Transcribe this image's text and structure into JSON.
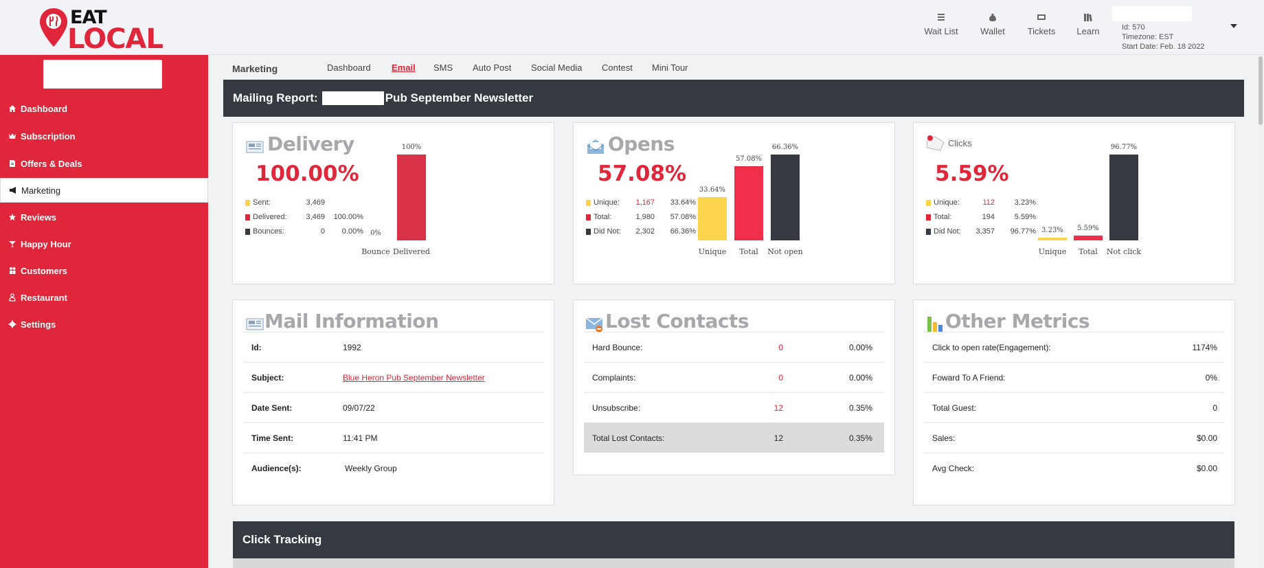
{
  "header": {
    "logo_top": "EAT",
    "logo_bottom": "LOCAL",
    "nav": [
      {
        "label": "Wait List",
        "icon": "list-icon"
      },
      {
        "label": "Wallet",
        "icon": "money-bag-icon"
      },
      {
        "label": "Tickets",
        "icon": "ticket-icon"
      },
      {
        "label": "Learn",
        "icon": "books-icon"
      }
    ],
    "account": {
      "id": "Id: 570",
      "timezone": "Timezone: EST",
      "start_date": "Start Date: Feb. 18 2022"
    }
  },
  "sidebar": {
    "items": [
      {
        "label": "Dashboard",
        "icon": "home-icon"
      },
      {
        "label": "Subscription",
        "icon": "crown-icon"
      },
      {
        "label": "Offers & Deals",
        "icon": "document-icon"
      },
      {
        "label": "Marketing",
        "icon": "megaphone-icon"
      },
      {
        "label": "Reviews",
        "icon": "star-icon"
      },
      {
        "label": "Happy Hour",
        "icon": "cocktail-icon"
      },
      {
        "label": "Customers",
        "icon": "people-icon"
      },
      {
        "label": "Restaurant",
        "icon": "chef-icon"
      },
      {
        "label": "Settings",
        "icon": "gear-icon"
      }
    ]
  },
  "subnav": {
    "section": "Marketing",
    "tabs": [
      "Dashboard",
      "Email",
      "SMS",
      "Auto Post",
      "Social Media",
      "Contest",
      "Mini Tour"
    ]
  },
  "banner": {
    "prefix": "Mailing Report:",
    "suffix": "Pub September Newsletter"
  },
  "delivery": {
    "title": "Delivery",
    "pct": "100.00%",
    "rows": [
      {
        "label": "Sent:",
        "num": "3,469",
        "pct": ""
      },
      {
        "label": "Delivered:",
        "num": "3,469",
        "pct": "100.00%"
      },
      {
        "label": "Bounces:",
        "num": "0",
        "pct": "0.00%"
      }
    ],
    "chart": {
      "type": "bar",
      "categories": [
        "Bounce",
        "Delivered"
      ],
      "values": [
        0,
        100
      ],
      "labels": [
        "0%",
        "100%"
      ],
      "ylim": [
        0,
        100
      ]
    }
  },
  "opens": {
    "title": "Opens",
    "pct": "57.08%",
    "rows": [
      {
        "label": "Unique:",
        "num": "1,167",
        "pct": "33.64%"
      },
      {
        "label": "Total:",
        "num": "1,980",
        "pct": "57.08%"
      },
      {
        "label": "Did Not:",
        "num": "2,302",
        "pct": "66.36%"
      }
    ],
    "chart": {
      "type": "bar",
      "categories": [
        "Unique",
        "Total",
        "Not open"
      ],
      "values": [
        33.64,
        57.08,
        66.36
      ],
      "labels": [
        "33.64%",
        "57.08%",
        "66.36%"
      ],
      "ylim": [
        0,
        66.36
      ]
    }
  },
  "clicks": {
    "title": "Clicks",
    "pct": "5.59%",
    "rows": [
      {
        "label": "Unique:",
        "num": "112",
        "pct": "3.23%"
      },
      {
        "label": "Total:",
        "num": "194",
        "pct": "5.59%"
      },
      {
        "label": "Did Not:",
        "num": "3,357",
        "pct": "96.77%"
      }
    ],
    "chart": {
      "type": "bar",
      "categories": [
        "Unique",
        "Total",
        "Not click"
      ],
      "values": [
        3.23,
        5.59,
        96.77
      ],
      "labels": [
        "3.23%",
        "5.59%",
        "96.77%"
      ],
      "ylim": [
        0,
        96.77
      ]
    }
  },
  "colors": {
    "yellow": "#fdd54c",
    "red": "#e0263b",
    "barred": "#f0304a",
    "dark": "#343a40"
  },
  "mail_info": {
    "title": "Mail Information",
    "rows": [
      {
        "k": "Id:",
        "v": "1992"
      },
      {
        "k": "Subject:",
        "v": "Blue Heron Pub September Newsletter"
      },
      {
        "k": "Date Sent:",
        "v": "09/07/22"
      },
      {
        "k": "Time Sent:",
        "v": "11:41 PM"
      },
      {
        "k": "Audience(s):",
        "v": "Weekly Group"
      }
    ]
  },
  "lost_contacts": {
    "title": "Lost Contacts",
    "rows": [
      {
        "k": "Hard Bounce:",
        "n": "0",
        "p": "0.00%"
      },
      {
        "k": "Complaints:",
        "n": "0",
        "p": "0.00%"
      },
      {
        "k": "Unsubscribe:",
        "n": "12",
        "p": "0.35%"
      },
      {
        "k": "Total Lost Contacts:",
        "n": "12",
        "p": "0.35%"
      }
    ]
  },
  "other_metrics": {
    "title": "Other Metrics",
    "rows": [
      {
        "k": "Click to open rate(Engagement):",
        "v": "1174%"
      },
      {
        "k": "Foward To A Friend:",
        "v": "0%"
      },
      {
        "k": "Total Guest:",
        "v": "0"
      },
      {
        "k": "Sales:",
        "v": "$0.00"
      },
      {
        "k": "Avg Check:",
        "v": "$0.00"
      }
    ]
  },
  "click_tracking": {
    "title": "Click Tracking"
  }
}
